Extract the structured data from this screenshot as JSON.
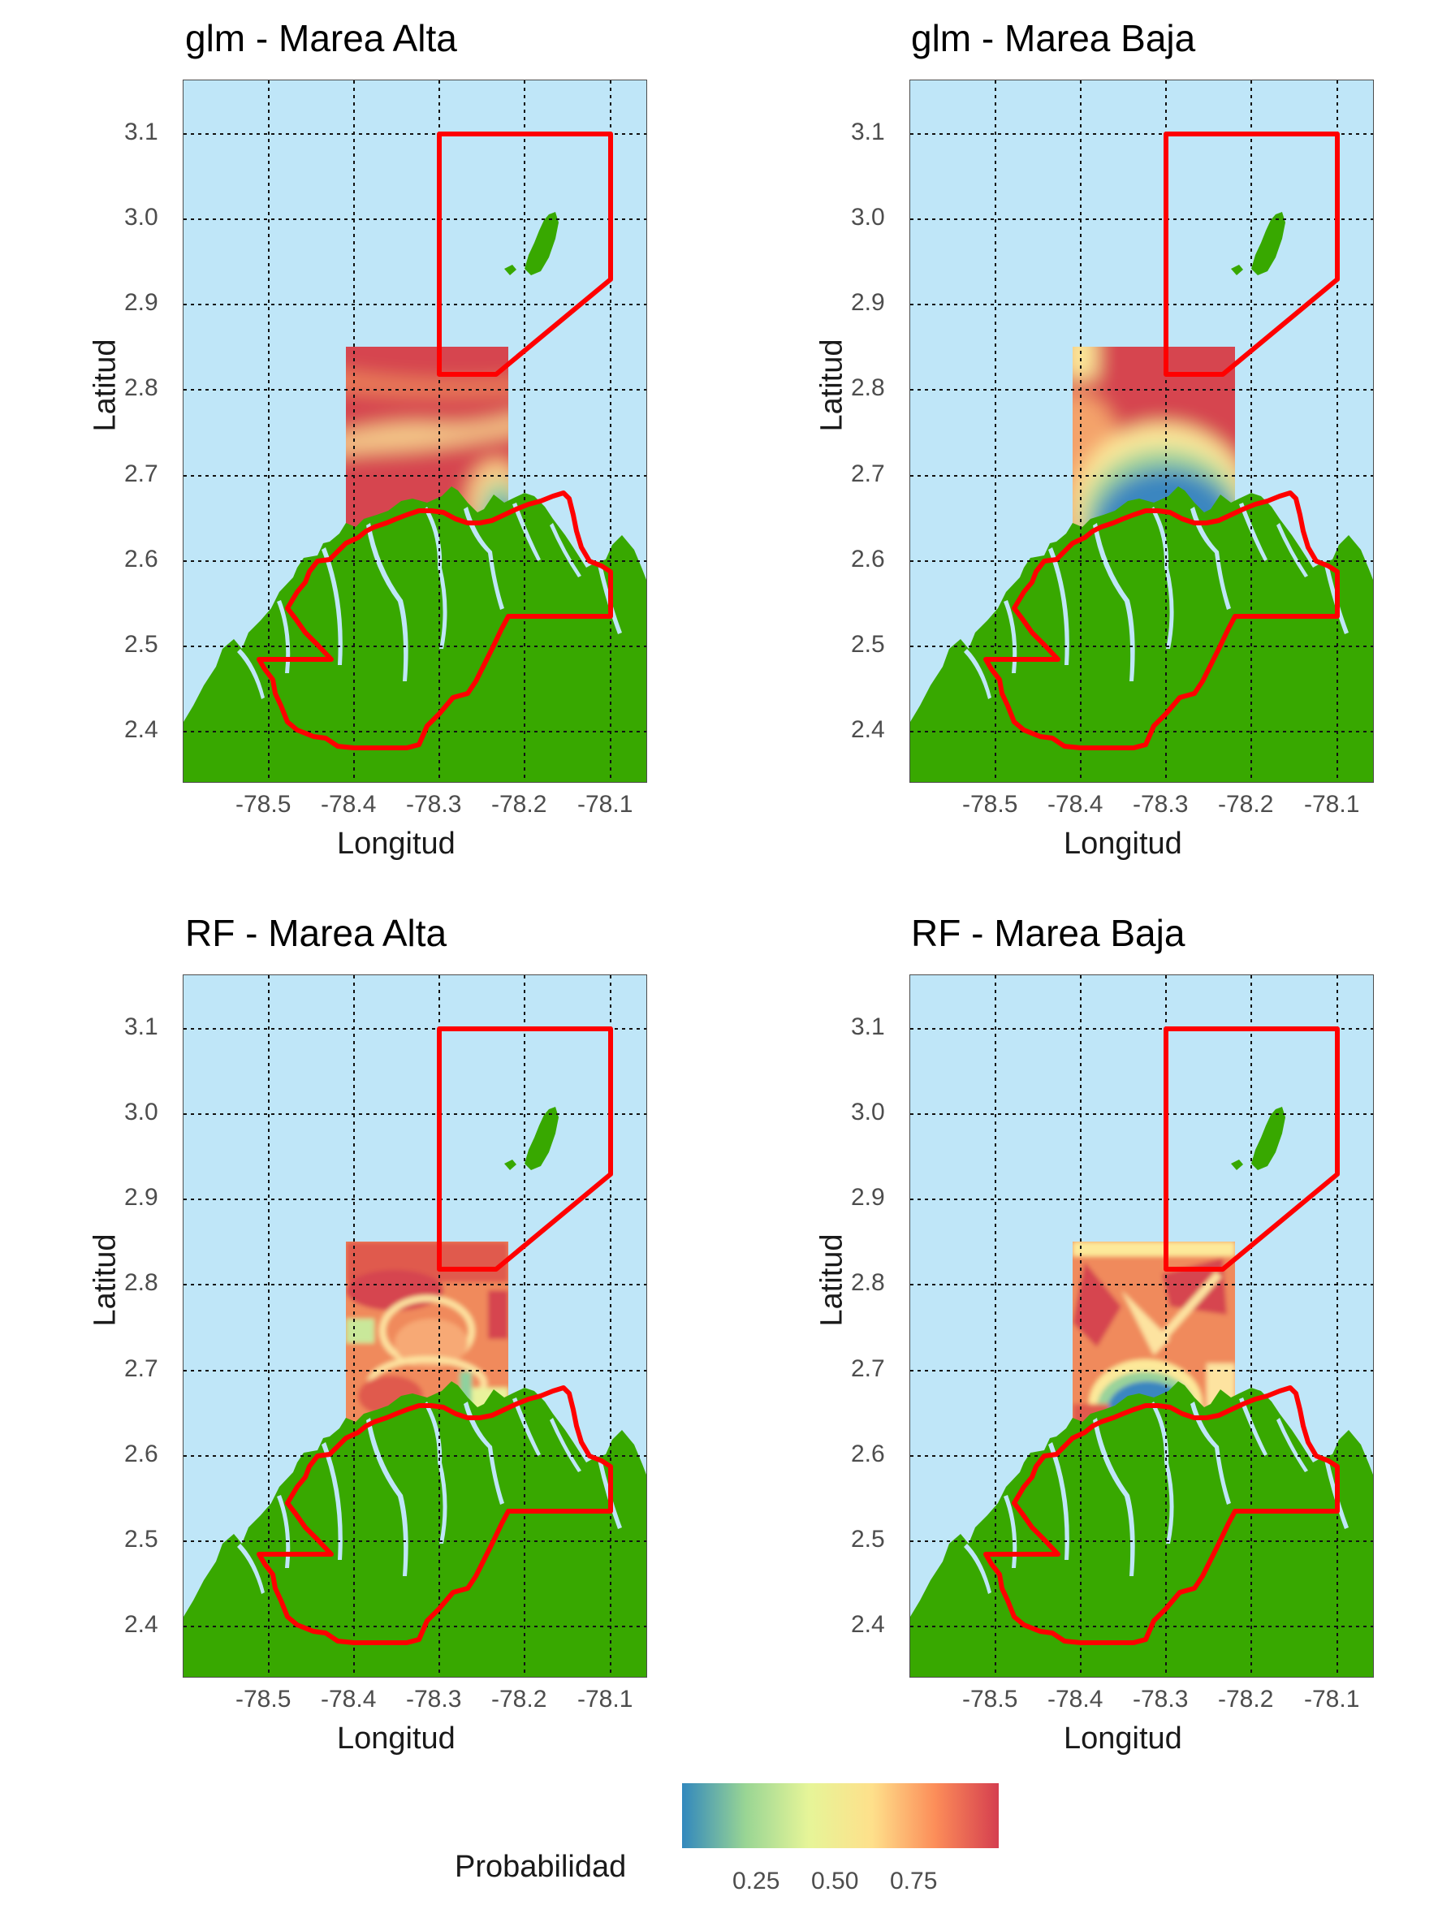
{
  "panels": [
    {
      "title": "glm - Marea Alta",
      "xlabel": "Longitud",
      "ylabel": "Latitud"
    },
    {
      "title": "glm - Marea Baja",
      "xlabel": "Longitud",
      "ylabel": "Latitud"
    },
    {
      "title": "RF - Marea Alta",
      "xlabel": "Longitud",
      "ylabel": "Latitud"
    },
    {
      "title": "RF - Marea Baja",
      "xlabel": "Longitud",
      "ylabel": "Latitud"
    }
  ],
  "x_ticks": [
    "-78.5",
    "-78.4",
    "-78.3",
    "-78.2",
    "-78.1"
  ],
  "y_ticks": [
    "3.1",
    "3.0",
    "2.9",
    "2.8",
    "2.7",
    "2.6",
    "2.5",
    "2.4"
  ],
  "legend": {
    "title": "Probabilidad",
    "ticks": [
      "0.25",
      "0.50",
      "0.75"
    ],
    "colors": [
      "#3288bd",
      "#99d594",
      "#e6f598",
      "#fee08b",
      "#fc8d59",
      "#d53e4f"
    ]
  },
  "colors": {
    "water": "#bfe6f8",
    "land": "#38a800",
    "boundary": "#ff0000"
  }
}
